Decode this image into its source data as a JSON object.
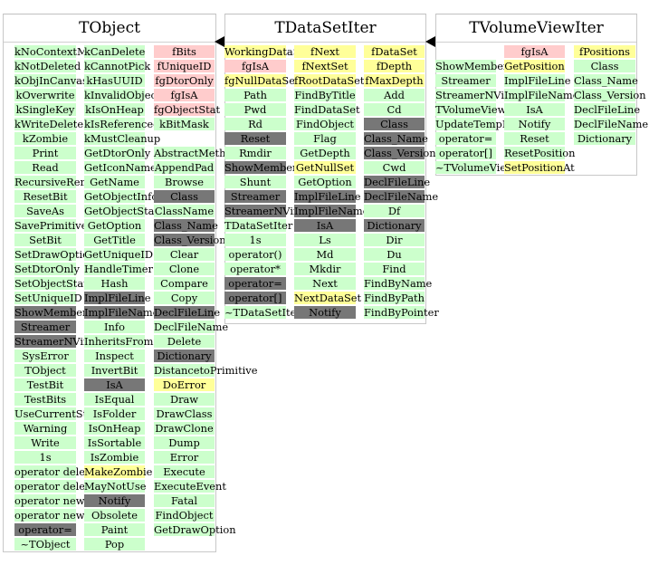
{
  "colors": {
    "method_public": "#ccffcc",
    "data_member": "#ffcccc",
    "method_protected": "#ffff99",
    "inherited_method": "#777777"
  },
  "classes": [
    {
      "name": "TObject",
      "columns": [
        [
          {
            "text": "kNoContextMenu",
            "kind": "green"
          },
          {
            "text": "kNotDeleted",
            "kind": "green"
          },
          {
            "text": "kObjInCanvas",
            "kind": "green"
          },
          {
            "text": "kOverwrite",
            "kind": "green"
          },
          {
            "text": "kSingleKey",
            "kind": "green"
          },
          {
            "text": "kWriteDelete",
            "kind": "green"
          },
          {
            "text": "kZombie",
            "kind": "green"
          },
          {
            "text": "Print",
            "kind": "green"
          },
          {
            "text": "Read",
            "kind": "green"
          },
          {
            "text": "RecursiveRemove",
            "kind": "green"
          },
          {
            "text": "ResetBit",
            "kind": "green"
          },
          {
            "text": "SaveAs",
            "kind": "green"
          },
          {
            "text": "SavePrimitive",
            "kind": "green"
          },
          {
            "text": "SetBit",
            "kind": "green"
          },
          {
            "text": "SetDrawOption",
            "kind": "green"
          },
          {
            "text": "SetDtorOnly",
            "kind": "green"
          },
          {
            "text": "SetObjectStat",
            "kind": "green"
          },
          {
            "text": "SetUniqueID",
            "kind": "green"
          },
          {
            "text": "ShowMembers",
            "kind": "gray"
          },
          {
            "text": "Streamer",
            "kind": "gray"
          },
          {
            "text": "StreamerNVirtual",
            "kind": "gray"
          },
          {
            "text": "SysError",
            "kind": "green"
          },
          {
            "text": "TObject",
            "kind": "green"
          },
          {
            "text": "TestBit",
            "kind": "green"
          },
          {
            "text": "TestBits",
            "kind": "green"
          },
          {
            "text": "UseCurrentStyle",
            "kind": "green"
          },
          {
            "text": "Warning",
            "kind": "green"
          },
          {
            "text": "Write",
            "kind": "green"
          },
          {
            "text": "1s",
            "kind": "green"
          },
          {
            "text": "operator delete",
            "kind": "green"
          },
          {
            "text": "operator delete[]",
            "kind": "green"
          },
          {
            "text": "operator new",
            "kind": "green"
          },
          {
            "text": "operator new[]",
            "kind": "green"
          },
          {
            "text": "operator=",
            "kind": "gray"
          },
          {
            "text": "~TObject",
            "kind": "green"
          }
        ],
        [
          {
            "text": "kCanDelete",
            "kind": "green"
          },
          {
            "text": "kCannotPick",
            "kind": "green"
          },
          {
            "text": "kHasUUID",
            "kind": "green"
          },
          {
            "text": "kInvalidObject",
            "kind": "green"
          },
          {
            "text": "kIsOnHeap",
            "kind": "green"
          },
          {
            "text": "kIsReferenced",
            "kind": "green"
          },
          {
            "text": "kMustCleanup",
            "kind": "green"
          },
          {
            "text": "GetDtorOnly",
            "kind": "green"
          },
          {
            "text": "GetIconName",
            "kind": "green"
          },
          {
            "text": "GetName",
            "kind": "green"
          },
          {
            "text": "GetObjectInfo",
            "kind": "green"
          },
          {
            "text": "GetObjectStat",
            "kind": "green"
          },
          {
            "text": "GetOption",
            "kind": "green"
          },
          {
            "text": "GetTitle",
            "kind": "green"
          },
          {
            "text": "GetUniqueID",
            "kind": "green"
          },
          {
            "text": "HandleTimer",
            "kind": "green"
          },
          {
            "text": "Hash",
            "kind": "green"
          },
          {
            "text": "ImplFileLine",
            "kind": "gray"
          },
          {
            "text": "ImplFileName",
            "kind": "gray"
          },
          {
            "text": "Info",
            "kind": "green"
          },
          {
            "text": "InheritsFrom",
            "kind": "green"
          },
          {
            "text": "Inspect",
            "kind": "green"
          },
          {
            "text": "InvertBit",
            "kind": "green"
          },
          {
            "text": "IsA",
            "kind": "gray"
          },
          {
            "text": "IsEqual",
            "kind": "green"
          },
          {
            "text": "IsFolder",
            "kind": "green"
          },
          {
            "text": "IsOnHeap",
            "kind": "green"
          },
          {
            "text": "IsSortable",
            "kind": "green"
          },
          {
            "text": "IsZombie",
            "kind": "green"
          },
          {
            "text": "MakeZombie",
            "kind": "yellow"
          },
          {
            "text": "MayNotUse",
            "kind": "green"
          },
          {
            "text": "Notify",
            "kind": "gray"
          },
          {
            "text": "Obsolete",
            "kind": "green"
          },
          {
            "text": "Paint",
            "kind": "green"
          },
          {
            "text": "Pop",
            "kind": "green"
          }
        ],
        [
          {
            "text": "fBits",
            "kind": "pink"
          },
          {
            "text": "fUniqueID",
            "kind": "pink"
          },
          {
            "text": "fgDtorOnly",
            "kind": "pink"
          },
          {
            "text": "fgIsA",
            "kind": "pink"
          },
          {
            "text": "fgObjectStat",
            "kind": "pink"
          },
          {
            "text": "kBitMask",
            "kind": "green"
          },
          {
            "text": "",
            "kind": "blank"
          },
          {
            "text": "AbstractMethod",
            "kind": "green"
          },
          {
            "text": "AppendPad",
            "kind": "green"
          },
          {
            "text": "Browse",
            "kind": "green"
          },
          {
            "text": "Class",
            "kind": "gray"
          },
          {
            "text": "ClassName",
            "kind": "green"
          },
          {
            "text": "Class_Name",
            "kind": "gray"
          },
          {
            "text": "Class_Version",
            "kind": "gray"
          },
          {
            "text": "Clear",
            "kind": "green"
          },
          {
            "text": "Clone",
            "kind": "green"
          },
          {
            "text": "Compare",
            "kind": "green"
          },
          {
            "text": "Copy",
            "kind": "green"
          },
          {
            "text": "DeclFileLine",
            "kind": "gray"
          },
          {
            "text": "DeclFileName",
            "kind": "green"
          },
          {
            "text": "Delete",
            "kind": "green"
          },
          {
            "text": "Dictionary",
            "kind": "gray"
          },
          {
            "text": "DistancetoPrimitive",
            "kind": "green"
          },
          {
            "text": "DoError",
            "kind": "yellow"
          },
          {
            "text": "Draw",
            "kind": "green"
          },
          {
            "text": "DrawClass",
            "kind": "green"
          },
          {
            "text": "DrawClone",
            "kind": "green"
          },
          {
            "text": "Dump",
            "kind": "green"
          },
          {
            "text": "Error",
            "kind": "green"
          },
          {
            "text": "Execute",
            "kind": "green"
          },
          {
            "text": "ExecuteEvent",
            "kind": "green"
          },
          {
            "text": "Fatal",
            "kind": "green"
          },
          {
            "text": "FindObject",
            "kind": "green"
          },
          {
            "text": "GetDrawOption",
            "kind": "green"
          }
        ]
      ]
    },
    {
      "name": "TDataSetIter",
      "columns": [
        [
          {
            "text": "WorkingDataSet",
            "kind": "yellow"
          },
          {
            "text": "fgIsA",
            "kind": "pink"
          },
          {
            "text": "fgNullDataSet",
            "kind": "yellow"
          },
          {
            "text": "Path",
            "kind": "green"
          },
          {
            "text": "Pwd",
            "kind": "green"
          },
          {
            "text": "Rd",
            "kind": "green"
          },
          {
            "text": "Reset",
            "kind": "gray"
          },
          {
            "text": "Rmdir",
            "kind": "green"
          },
          {
            "text": "ShowMembers",
            "kind": "gray"
          },
          {
            "text": "Shunt",
            "kind": "green"
          },
          {
            "text": "Streamer",
            "kind": "gray"
          },
          {
            "text": "StreamerNVirtual",
            "kind": "gray"
          },
          {
            "text": "TDataSetIter",
            "kind": "green"
          },
          {
            "text": "1s",
            "kind": "green"
          },
          {
            "text": "operator()",
            "kind": "green"
          },
          {
            "text": "operator*",
            "kind": "green"
          },
          {
            "text": "operator=",
            "kind": "gray"
          },
          {
            "text": "operator[]",
            "kind": "gray"
          },
          {
            "text": "~TDataSetIter",
            "kind": "green"
          }
        ],
        [
          {
            "text": "fNext",
            "kind": "yellow"
          },
          {
            "text": "fNextSet",
            "kind": "yellow"
          },
          {
            "text": "fRootDataSet",
            "kind": "yellow"
          },
          {
            "text": "FindByTitle",
            "kind": "green"
          },
          {
            "text": "FindDataSet",
            "kind": "green"
          },
          {
            "text": "FindObject",
            "kind": "green"
          },
          {
            "text": "Flag",
            "kind": "green"
          },
          {
            "text": "GetDepth",
            "kind": "green"
          },
          {
            "text": "GetNullSet",
            "kind": "yellow"
          },
          {
            "text": "GetOption",
            "kind": "green"
          },
          {
            "text": "ImplFileLine",
            "kind": "gray"
          },
          {
            "text": "ImplFileName",
            "kind": "gray"
          },
          {
            "text": "IsA",
            "kind": "gray"
          },
          {
            "text": "Ls",
            "kind": "green"
          },
          {
            "text": "Md",
            "kind": "green"
          },
          {
            "text": "Mkdir",
            "kind": "green"
          },
          {
            "text": "Next",
            "kind": "green"
          },
          {
            "text": "NextDataSet",
            "kind": "yellow"
          },
          {
            "text": "Notify",
            "kind": "gray"
          }
        ],
        [
          {
            "text": "fDataSet",
            "kind": "yellow"
          },
          {
            "text": "fDepth",
            "kind": "yellow"
          },
          {
            "text": "fMaxDepth",
            "kind": "yellow"
          },
          {
            "text": "Add",
            "kind": "green"
          },
          {
            "text": "Cd",
            "kind": "green"
          },
          {
            "text": "Class",
            "kind": "gray"
          },
          {
            "text": "Class_Name",
            "kind": "gray"
          },
          {
            "text": "Class_Version",
            "kind": "gray"
          },
          {
            "text": "Cwd",
            "kind": "green"
          },
          {
            "text": "DeclFileLine",
            "kind": "gray"
          },
          {
            "text": "DeclFileName",
            "kind": "gray"
          },
          {
            "text": "Df",
            "kind": "green"
          },
          {
            "text": "Dictionary",
            "kind": "gray"
          },
          {
            "text": "Dir",
            "kind": "green"
          },
          {
            "text": "Du",
            "kind": "green"
          },
          {
            "text": "Find",
            "kind": "green"
          },
          {
            "text": "FindByName",
            "kind": "green"
          },
          {
            "text": "FindByPath",
            "kind": "green"
          },
          {
            "text": "FindByPointer",
            "kind": "green"
          }
        ]
      ]
    },
    {
      "name": "TVolumeViewIter",
      "columns": [
        [
          {
            "text": "ShowMembers",
            "kind": "green"
          },
          {
            "text": "Streamer",
            "kind": "green"
          },
          {
            "text": "StreamerNVirtual",
            "kind": "green"
          },
          {
            "text": "TVolumeViewIter",
            "kind": "green"
          },
          {
            "text": "UpdateTempMatrix",
            "kind": "green"
          },
          {
            "text": "operator=",
            "kind": "green"
          },
          {
            "text": "operator[]",
            "kind": "green"
          },
          {
            "text": "~TVolumeViewIter",
            "kind": "green"
          }
        ],
        [
          {
            "text": "fgIsA",
            "kind": "pink"
          },
          {
            "text": "GetPosition",
            "kind": "yellow"
          },
          {
            "text": "ImplFileLine",
            "kind": "green"
          },
          {
            "text": "ImplFileName",
            "kind": "green"
          },
          {
            "text": "IsA",
            "kind": "green"
          },
          {
            "text": "Notify",
            "kind": "green"
          },
          {
            "text": "Reset",
            "kind": "green"
          },
          {
            "text": "ResetPosition",
            "kind": "green"
          },
          {
            "text": "SetPositionAt",
            "kind": "yellow"
          }
        ],
        [
          {
            "text": "fPositions",
            "kind": "yellow"
          },
          {
            "text": "Class",
            "kind": "green"
          },
          {
            "text": "Class_Name",
            "kind": "green"
          },
          {
            "text": "Class_Version",
            "kind": "green"
          },
          {
            "text": "DeclFileLine",
            "kind": "green"
          },
          {
            "text": "DeclFileName",
            "kind": "green"
          },
          {
            "text": "Dictionary",
            "kind": "green"
          }
        ]
      ]
    }
  ]
}
